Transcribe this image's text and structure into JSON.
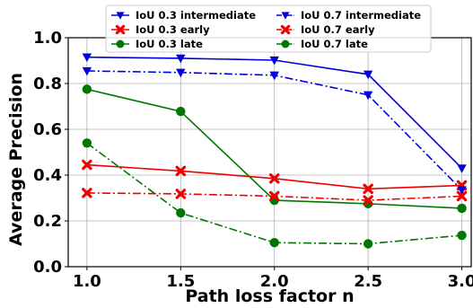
{
  "chart_data": {
    "type": "line",
    "title": "",
    "xlabel": "Path loss factor n",
    "ylabel": "Average Precision",
    "x": [
      1.0,
      1.5,
      2.0,
      2.5,
      3.0
    ],
    "xticks": [
      "1.0",
      "1.5",
      "2.0",
      "2.5",
      "3.0"
    ],
    "yticks": [
      "0.0",
      "0.2",
      "0.4",
      "0.6",
      "0.8",
      "1.0"
    ],
    "xlim": [
      0.9,
      3.05
    ],
    "ylim": [
      0.0,
      1.0
    ],
    "grid": true,
    "legend_placement": "top, two columns",
    "series": [
      {
        "name": "IoU 0.3 intermediate",
        "color": "#0000dd",
        "marker": "triangle-down",
        "linestyle": "solid",
        "values": [
          0.915,
          0.91,
          0.902,
          0.84,
          0.43
        ]
      },
      {
        "name": "IoU 0.3 early",
        "color": "#ee0000",
        "marker": "x",
        "linestyle": "solid",
        "values": [
          0.445,
          0.418,
          0.385,
          0.34,
          0.355
        ]
      },
      {
        "name": "IoU 0.3 late",
        "color": "#007700",
        "marker": "circle",
        "linestyle": "solid",
        "values": [
          0.775,
          0.678,
          0.29,
          0.275,
          0.255
        ]
      },
      {
        "name": "IoU 0.7 intermediate",
        "color": "#0000dd",
        "marker": "triangle-down",
        "linestyle": "dashdot",
        "values": [
          0.855,
          0.848,
          0.836,
          0.75,
          0.335
        ]
      },
      {
        "name": "IoU 0.7 early",
        "color": "#ee0000",
        "marker": "x",
        "linestyle": "dashdot",
        "values": [
          0.322,
          0.318,
          0.308,
          0.29,
          0.308
        ]
      },
      {
        "name": "IoU 0.7 late",
        "color": "#007700",
        "marker": "circle",
        "linestyle": "dashdot",
        "values": [
          0.54,
          0.235,
          0.105,
          0.1,
          0.137
        ]
      }
    ]
  }
}
